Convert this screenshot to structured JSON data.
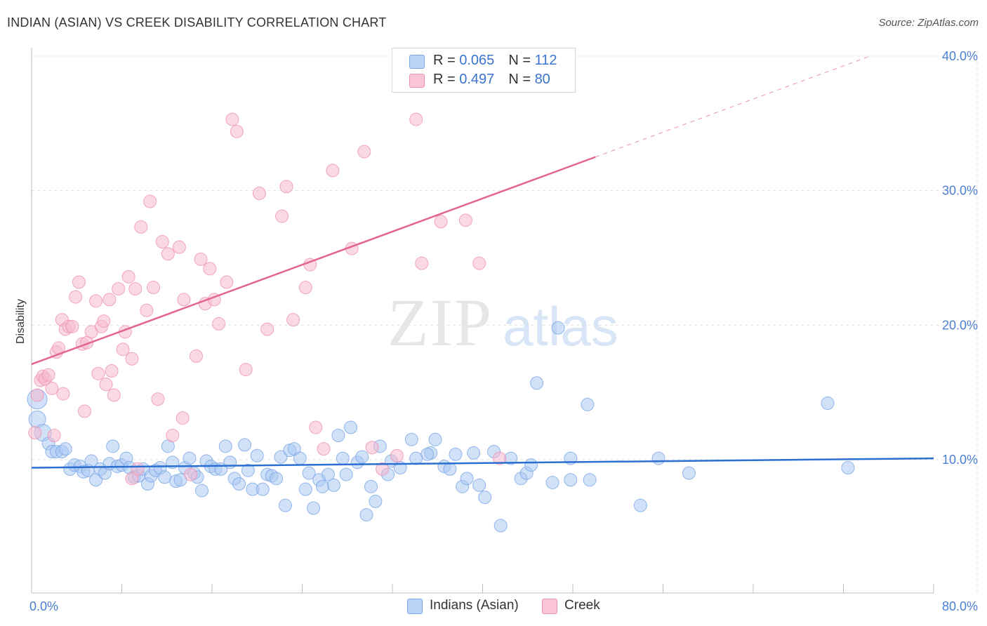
{
  "header": {
    "title": "INDIAN (ASIAN) VS CREEK DISABILITY CORRELATION CHART",
    "source": "Source: ZipAtlas.com"
  },
  "legend": {
    "row1": {
      "r_label": "R = ",
      "r_value": "0.065",
      "n_label": "N = ",
      "n_value": "112"
    },
    "row2": {
      "r_label": "R = ",
      "r_value": "0.497",
      "n_label": "N = ",
      "n_value": "80"
    }
  },
  "colors": {
    "blue_fill": "#a9c8f2",
    "blue_stroke": "#7aa6e6",
    "blue_line": "#2a6fd1",
    "pink_fill": "#f6b9cd",
    "pink_stroke": "#ee91b1",
    "pink_line": "#e2648f",
    "grid": "#e3e3e3",
    "accent_text": "#4a7fd4"
  },
  "chart_data": {
    "type": "scatter",
    "title": "INDIAN (ASIAN) VS CREEK DISABILITY CORRELATION CHART",
    "xlabel": "",
    "ylabel": "Disability",
    "xlim": [
      0,
      80
    ],
    "ylim": [
      0,
      42
    ],
    "x_tick_labels": [
      "0.0%",
      "80.0%"
    ],
    "y_ticks": [
      10,
      20,
      30,
      40
    ],
    "y_tick_labels": [
      "10.0%",
      "20.0%",
      "30.0%",
      "40.0%"
    ],
    "grid": true,
    "legend_placement": "bottom-center",
    "series": [
      {
        "name": "Indians (Asian)",
        "color": "#7aa6e6",
        "trend": {
          "x0": 0,
          "y0": 9.4,
          "x1": 80,
          "y1": 10.1
        },
        "points": [
          [
            0.5,
            14.5
          ],
          [
            0.5,
            13.0
          ],
          [
            1.0,
            12.0
          ],
          [
            1.5,
            11.2
          ],
          [
            1.8,
            10.6
          ],
          [
            2.2,
            10.6
          ],
          [
            2.7,
            10.6
          ],
          [
            3.0,
            10.8
          ],
          [
            3.4,
            9.3
          ],
          [
            3.8,
            9.6
          ],
          [
            4.3,
            9.5
          ],
          [
            4.6,
            9.1
          ],
          [
            5.0,
            9.2
          ],
          [
            5.3,
            9.9
          ],
          [
            5.7,
            8.5
          ],
          [
            6.1,
            9.3
          ],
          [
            6.5,
            9.0
          ],
          [
            6.9,
            9.7
          ],
          [
            7.2,
            11.0
          ],
          [
            7.6,
            9.5
          ],
          [
            8.0,
            9.6
          ],
          [
            8.4,
            10.1
          ],
          [
            8.7,
            9.4
          ],
          [
            9.1,
            8.7
          ],
          [
            9.5,
            8.8
          ],
          [
            9.9,
            9.3
          ],
          [
            10.3,
            8.2
          ],
          [
            10.6,
            8.8
          ],
          [
            11.0,
            9.2
          ],
          [
            11.4,
            9.4
          ],
          [
            11.8,
            8.7
          ],
          [
            12.1,
            11.0
          ],
          [
            12.5,
            9.8
          ],
          [
            12.8,
            8.4
          ],
          [
            13.2,
            8.5
          ],
          [
            13.6,
            9.4
          ],
          [
            14.0,
            10.1
          ],
          [
            14.4,
            9.0
          ],
          [
            14.7,
            8.7
          ],
          [
            15.1,
            7.7
          ],
          [
            15.5,
            9.9
          ],
          [
            15.9,
            9.5
          ],
          [
            16.3,
            9.3
          ],
          [
            16.8,
            9.3
          ],
          [
            17.2,
            11.0
          ],
          [
            17.6,
            9.8
          ],
          [
            18.0,
            8.6
          ],
          [
            18.4,
            8.2
          ],
          [
            18.9,
            11.1
          ],
          [
            19.2,
            9.2
          ],
          [
            19.6,
            7.8
          ],
          [
            20.0,
            10.3
          ],
          [
            20.5,
            7.8
          ],
          [
            20.9,
            8.9
          ],
          [
            21.3,
            8.8
          ],
          [
            21.7,
            8.6
          ],
          [
            22.1,
            10.2
          ],
          [
            22.5,
            6.6
          ],
          [
            22.9,
            10.7
          ],
          [
            23.3,
            10.8
          ],
          [
            23.8,
            10.1
          ],
          [
            24.3,
            7.8
          ],
          [
            24.6,
            9.0
          ],
          [
            25.0,
            6.4
          ],
          [
            25.5,
            8.5
          ],
          [
            25.8,
            8.0
          ],
          [
            26.3,
            8.9
          ],
          [
            26.8,
            8.1
          ],
          [
            27.2,
            11.8
          ],
          [
            27.6,
            10.1
          ],
          [
            27.9,
            8.9
          ],
          [
            28.3,
            12.4
          ],
          [
            28.9,
            9.8
          ],
          [
            29.3,
            10.2
          ],
          [
            29.7,
            5.9
          ],
          [
            30.1,
            8.0
          ],
          [
            30.5,
            6.9
          ],
          [
            30.9,
            11.0
          ],
          [
            31.6,
            8.9
          ],
          [
            31.9,
            9.9
          ],
          [
            32.7,
            9.4
          ],
          [
            33.7,
            11.5
          ],
          [
            34.1,
            10.1
          ],
          [
            35.4,
            10.5
          ],
          [
            35.8,
            11.5
          ],
          [
            35.1,
            10.4
          ],
          [
            36.6,
            9.5
          ],
          [
            37.1,
            9.3
          ],
          [
            37.6,
            10.4
          ],
          [
            38.2,
            8.0
          ],
          [
            38.6,
            8.6
          ],
          [
            39.2,
            10.5
          ],
          [
            39.7,
            8.1
          ],
          [
            40.2,
            7.2
          ],
          [
            41.0,
            10.6
          ],
          [
            41.6,
            5.1
          ],
          [
            42.5,
            10.1
          ],
          [
            43.4,
            8.6
          ],
          [
            43.9,
            9.0
          ],
          [
            44.3,
            9.6
          ],
          [
            44.8,
            15.7
          ],
          [
            46.7,
            19.8
          ],
          [
            46.2,
            8.3
          ],
          [
            47.8,
            8.5
          ],
          [
            47.8,
            10.1
          ],
          [
            49.3,
            14.1
          ],
          [
            49.5,
            8.5
          ],
          [
            54.0,
            6.6
          ],
          [
            55.6,
            10.1
          ],
          [
            58.3,
            9.0
          ],
          [
            70.6,
            14.2
          ],
          [
            72.4,
            9.4
          ]
        ]
      },
      {
        "name": "Creek",
        "color": "#ee91b1",
        "trend": {
          "x0": 0,
          "y0": 17.1,
          "x1": 50,
          "y1": 32.5
        },
        "points": [
          [
            0.3,
            12.0
          ],
          [
            0.5,
            14.8
          ],
          [
            0.8,
            15.9
          ],
          [
            1.0,
            16.2
          ],
          [
            1.2,
            16.0
          ],
          [
            1.5,
            16.3
          ],
          [
            1.8,
            15.3
          ],
          [
            2.2,
            18.0
          ],
          [
            2.4,
            18.3
          ],
          [
            2.7,
            20.4
          ],
          [
            2.8,
            14.9
          ],
          [
            3.0,
            19.7
          ],
          [
            3.3,
            19.9
          ],
          [
            3.6,
            19.9
          ],
          [
            3.9,
            22.1
          ],
          [
            4.2,
            23.2
          ],
          [
            4.5,
            18.6
          ],
          [
            4.9,
            18.7
          ],
          [
            5.3,
            19.5
          ],
          [
            5.7,
            21.8
          ],
          [
            5.9,
            16.4
          ],
          [
            6.2,
            19.9
          ],
          [
            6.4,
            20.3
          ],
          [
            6.6,
            15.6
          ],
          [
            6.9,
            21.9
          ],
          [
            7.1,
            16.6
          ],
          [
            7.3,
            14.8
          ],
          [
            7.7,
            22.7
          ],
          [
            8.1,
            18.2
          ],
          [
            8.3,
            19.5
          ],
          [
            8.6,
            23.6
          ],
          [
            8.9,
            17.5
          ],
          [
            9.2,
            22.7
          ],
          [
            9.4,
            9.3
          ],
          [
            9.7,
            27.3
          ],
          [
            10.2,
            21.1
          ],
          [
            10.5,
            29.2
          ],
          [
            10.8,
            22.8
          ],
          [
            11.2,
            14.5
          ],
          [
            11.6,
            26.2
          ],
          [
            12.1,
            25.3
          ],
          [
            12.5,
            11.8
          ],
          [
            13.1,
            25.8
          ],
          [
            13.5,
            21.9
          ],
          [
            14.1,
            8.9
          ],
          [
            14.6,
            17.7
          ],
          [
            15.0,
            24.9
          ],
          [
            15.4,
            21.6
          ],
          [
            15.8,
            24.2
          ],
          [
            16.2,
            21.9
          ],
          [
            16.6,
            20.1
          ],
          [
            17.3,
            23.2
          ],
          [
            17.8,
            35.3
          ],
          [
            18.2,
            34.4
          ],
          [
            19.0,
            16.7
          ],
          [
            20.2,
            29.8
          ],
          [
            20.9,
            19.7
          ],
          [
            22.2,
            28.1
          ],
          [
            22.6,
            30.3
          ],
          [
            23.2,
            20.4
          ],
          [
            24.3,
            22.8
          ],
          [
            24.7,
            24.5
          ],
          [
            25.2,
            12.4
          ],
          [
            25.9,
            10.8
          ],
          [
            26.7,
            31.5
          ],
          [
            28.4,
            25.7
          ],
          [
            29.5,
            32.9
          ],
          [
            30.2,
            10.9
          ],
          [
            31.1,
            9.3
          ],
          [
            32.4,
            10.3
          ],
          [
            34.1,
            35.3
          ],
          [
            34.6,
            24.6
          ],
          [
            36.3,
            27.7
          ],
          [
            38.5,
            27.8
          ],
          [
            39.7,
            24.6
          ],
          [
            41.5,
            10.1
          ],
          [
            13.4,
            13.1
          ],
          [
            2.0,
            11.8
          ],
          [
            8.9,
            8.6
          ],
          [
            4.7,
            13.6
          ]
        ]
      }
    ]
  }
}
